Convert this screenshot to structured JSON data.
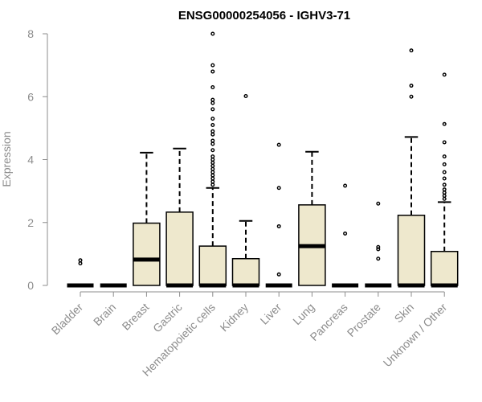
{
  "chart_data": {
    "type": "boxplot",
    "title": "ENSG00000254056 - IGHV3-71",
    "ylabel": "Expression",
    "xlabel": "",
    "ylim": [
      0,
      8
    ],
    "yticks": [
      0,
      2,
      4,
      6,
      8
    ],
    "grid": false,
    "legend": "none",
    "colors": {
      "box_fill": "#eee8cd",
      "stroke": "#000000",
      "axis": "#8c8c8c"
    },
    "categories": [
      "Bladder",
      "Brain",
      "Breast",
      "Gastric",
      "Hematopoietic cells",
      "Kidney",
      "Liver",
      "Lung",
      "Pancreas",
      "Prostate",
      "Skin",
      "Unknown / Other"
    ],
    "boxes": [
      {
        "q1": 0,
        "median": 0,
        "q3": 0,
        "whisker_low": 0,
        "whisker_high": 0,
        "outliers": [
          0.7,
          0.8
        ]
      },
      {
        "q1": 0,
        "median": 0,
        "q3": 0,
        "whisker_low": 0,
        "whisker_high": 0,
        "outliers": []
      },
      {
        "q1": 0,
        "median": 0.82,
        "q3": 1.98,
        "whisker_low": 0,
        "whisker_high": 4.22,
        "outliers": []
      },
      {
        "q1": 0,
        "median": 0,
        "q3": 2.33,
        "whisker_low": 0,
        "whisker_high": 4.35,
        "outliers": []
      },
      {
        "q1": 0,
        "median": 0,
        "q3": 1.25,
        "whisker_low": 0,
        "whisker_high": 3.1,
        "outliers": [
          3.2,
          3.3,
          3.4,
          3.5,
          3.6,
          3.7,
          3.8,
          3.9,
          4.0,
          4.1,
          4.3,
          4.5,
          4.6,
          4.8,
          4.9,
          5.1,
          5.3,
          5.6,
          5.8,
          5.9,
          6.3,
          6.8,
          7.0,
          8.0
        ]
      },
      {
        "q1": 0,
        "median": 0,
        "q3": 0.85,
        "whisker_low": 0,
        "whisker_high": 2.05,
        "outliers": [
          6.02
        ]
      },
      {
        "q1": 0,
        "median": 0,
        "q3": 0,
        "whisker_low": 0,
        "whisker_high": 0,
        "outliers": [
          0.35,
          1.88,
          3.1,
          4.47
        ]
      },
      {
        "q1": 0,
        "median": 1.25,
        "q3": 2.56,
        "whisker_low": 0,
        "whisker_high": 4.25,
        "outliers": []
      },
      {
        "q1": 0,
        "median": 0,
        "q3": 0,
        "whisker_low": 0,
        "whisker_high": 0,
        "outliers": [
          1.65,
          3.17
        ]
      },
      {
        "q1": 0,
        "median": 0,
        "q3": 0,
        "whisker_low": 0,
        "whisker_high": 0,
        "outliers": [
          0.85,
          1.15,
          1.22,
          2.6
        ]
      },
      {
        "q1": 0,
        "median": 0,
        "q3": 2.23,
        "whisker_low": 0,
        "whisker_high": 4.72,
        "outliers": [
          6.0,
          6.35,
          7.47
        ]
      },
      {
        "q1": 0,
        "median": 0,
        "q3": 1.08,
        "whisker_low": 0,
        "whisker_high": 2.65,
        "outliers": [
          2.75,
          2.85,
          2.95,
          3.05,
          3.2,
          3.4,
          3.6,
          3.85,
          4.1,
          4.55,
          5.13,
          6.7
        ]
      }
    ]
  }
}
